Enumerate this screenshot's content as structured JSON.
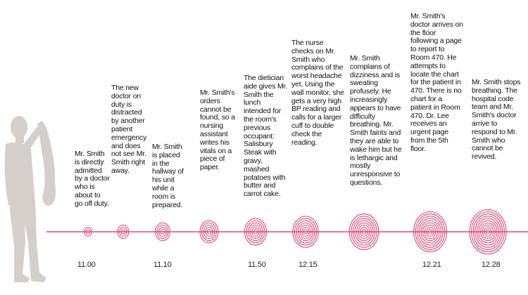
{
  "timeline": {
    "accent_color": "#e0245e",
    "figure_color": "#d4cfcb",
    "events": [
      {
        "text": "Mr. Smith is directly admitted by a doctor who is about to go off duty.",
        "time": "11.00",
        "rings": 2
      },
      {
        "text": "The new doctor on duty is distracted by another patient emergency and does not see Mr. Smith right away.",
        "time": "",
        "rings": 3
      },
      {
        "text": "Mr. Smith is placed in the hallway of his unit while a room is prepared.",
        "time": "11.10",
        "rings": 4
      },
      {
        "text": "Mr. Smith's orders cannot be found, so a nursing assistant writes his vitals on a piece of paper.",
        "time": "",
        "rings": 5
      },
      {
        "text": "The dietician aide gives Mr. Smith the lunch intended for the room's previous occupant: Salisbury Steak with gravy, mashed potatoes with butter and carrot cake.",
        "time": "11.50",
        "rings": 6
      },
      {
        "text": "The nurse checks on Mr. Smith who complains of the worst headache yet. Using the wall monitor, she gets a very high BP reading and calls for a larger cuff to double check the reading.",
        "time": "12.15",
        "rings": 7
      },
      {
        "text": "Mr. Smith complains of dizziness and is sweating profusely. He increasingly appears to have difficulty breathing. Mr. Smith faints and they are able to wake him but he is lethargic and mostly unresponsive to questions.",
        "time": "",
        "rings": 8
      },
      {
        "text": "Mr. Smith's doctor arrives on the floor following a page to report to Room 470. He attempts to locate the chart for the patient in 470. There is no chart for a patient in Room 470. Dr. Lee receives an urgent page from the 5th floor.",
        "time": "12.21",
        "rings": 9
      },
      {
        "text": "Mr. Smith stops breathing. The hospital code team and Mr. Smith's doctor arrive to respond to Mr. Smith who cannot be revived.",
        "time": "12.28",
        "rings": 10
      }
    ]
  }
}
